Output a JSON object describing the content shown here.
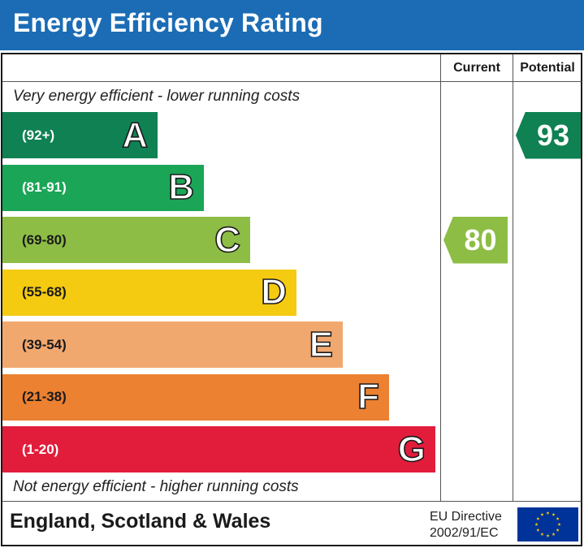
{
  "header": {
    "title": "Energy Efficiency Rating"
  },
  "columns": {
    "current": "Current",
    "potential": "Potential"
  },
  "notes": {
    "top": "Very energy efficient - lower running costs",
    "bottom": "Not energy efficient - higher running costs"
  },
  "colors": {
    "header_bg": "#1b6cb5",
    "A": "#0f8153",
    "B": "#1ba557",
    "C": "#8dbd45",
    "D": "#f5cb12",
    "E": "#f1a86f",
    "F": "#ec8131",
    "G": "#e21d3c",
    "eu_flag": "#003399",
    "eu_stars": "#ffcc00"
  },
  "chart_data": {
    "type": "bar",
    "categories": [
      "A",
      "B",
      "C",
      "D",
      "E",
      "F",
      "G"
    ],
    "ranges": [
      "(92+)",
      "(81-91)",
      "(69-80)",
      "(55-68)",
      "(39-54)",
      "(21-38)",
      "(1-20)"
    ],
    "current": {
      "value": "80",
      "band": "C"
    },
    "potential": {
      "value": "93",
      "band": "A"
    }
  },
  "footer": {
    "region": "England, Scotland & Wales",
    "directive_line1": "EU Directive",
    "directive_line2": "2002/91/EC",
    "flag_icon": "eu-flag-icon"
  }
}
